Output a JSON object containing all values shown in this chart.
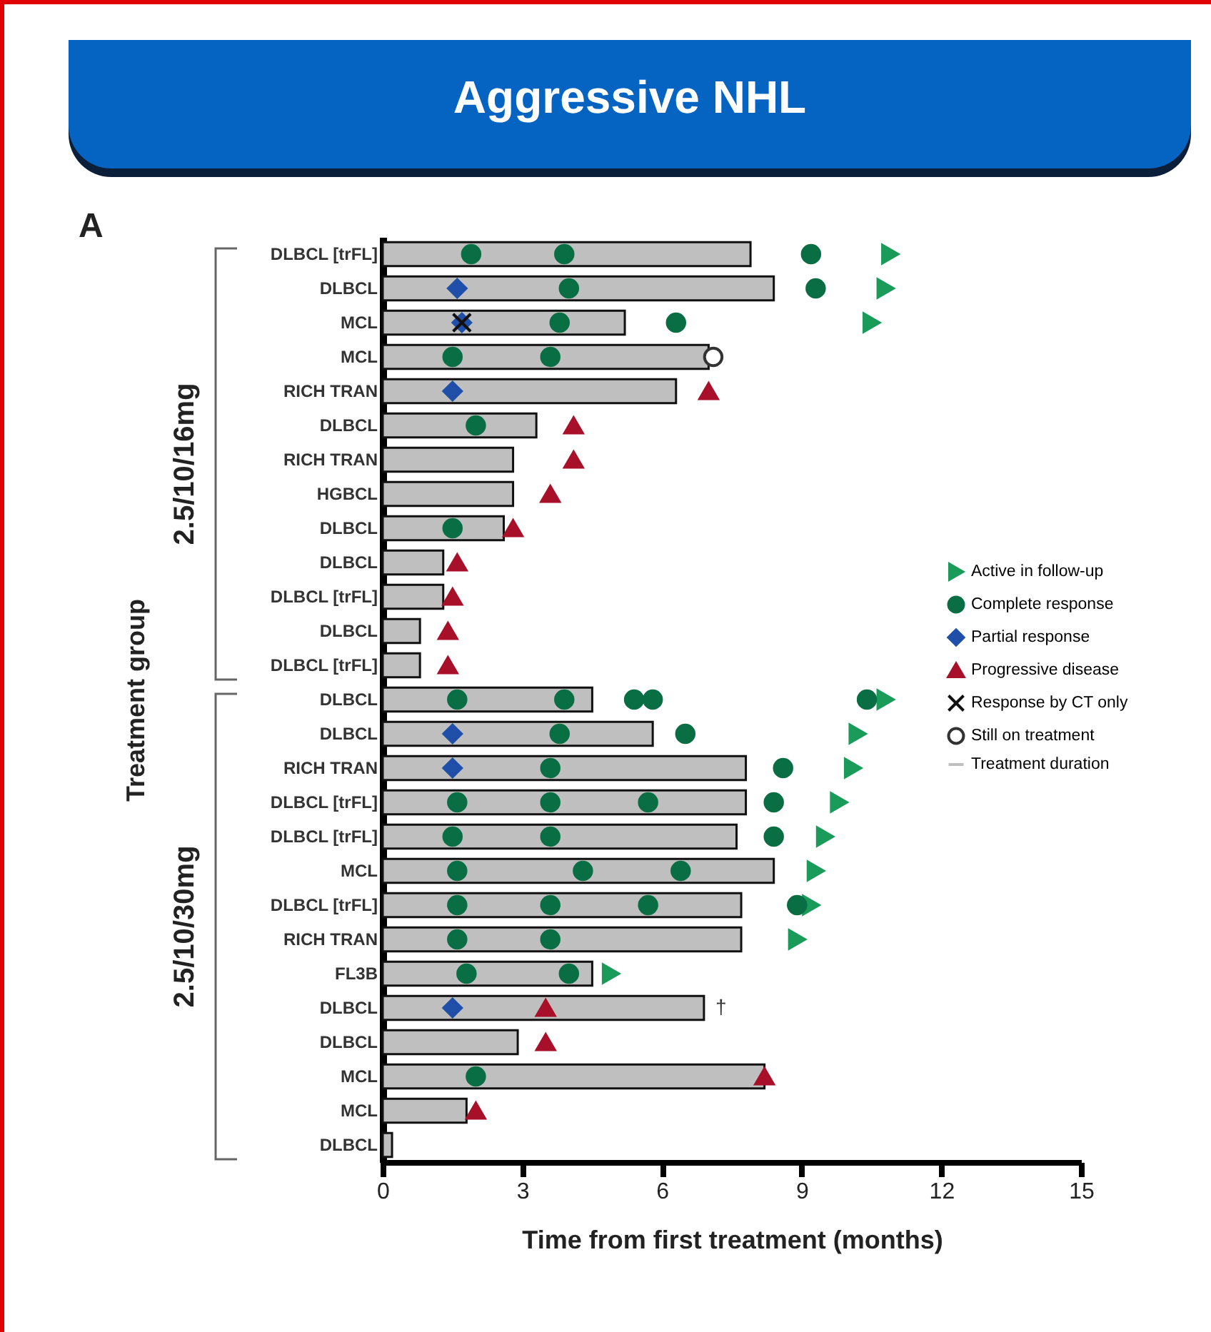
{
  "chart_data": {
    "type": "bar",
    "orientation": "horizontal",
    "title": "Aggressive NHL",
    "xlabel": "Time from first treatment (months)",
    "ylabel": "Treatment group",
    "annotations": [
      "A",
      "2.5/10/16mg",
      "2.5/10/30mg"
    ],
    "categories": [
      "DLBCL [trFL]",
      "DLBCL",
      "MCL",
      "MCL",
      "RICH TRAN",
      "DLBCL",
      "RICH TRAN",
      "HGBCL",
      "DLBCL",
      "DLBCL",
      "DLBCL [trFL]",
      "DLBCL",
      "DLBCL [trFL]",
      "DLBCL",
      "DLBCL",
      "RICH TRAN",
      "DLBCL [trFL]",
      "DLBCL [trFL]",
      "MCL",
      "DLBCL [trFL]",
      "RICH TRAN",
      "FL3B",
      "DLBCL",
      "DLBCL",
      "MCL",
      "MCL",
      "DLBCL"
    ],
    "xlim": [
      0,
      15
    ],
    "xticks": [
      0,
      3,
      6,
      9,
      12,
      15
    ],
    "legend": "right",
    "series": [
      {
        "name": "Active in follow-up",
        "type": "scatter",
        "marker": "triangle-right",
        "color": "#1a9b5a",
        "values": [
          10.9,
          10.8,
          10.5,
          null,
          null,
          null,
          null,
          null,
          null,
          null,
          null,
          null,
          null,
          10.8,
          10.2,
          10.1,
          9.8,
          9.5,
          9.3,
          9.2,
          8.9,
          4.9,
          null,
          null,
          null,
          null,
          null
        ]
      },
      {
        "name": "Complete response",
        "type": "scatter",
        "marker": "circle",
        "color": "#0a6e45",
        "values": [
          1.9,
          4.0,
          3.8,
          1.5,
          null,
          2.0,
          null,
          null,
          1.5,
          null,
          null,
          null,
          null,
          1.6,
          3.8,
          3.6,
          1.6,
          1.5,
          1.6,
          1.6,
          1.6,
          1.8,
          null,
          null,
          2.0,
          null,
          null
        ]
      },
      {
        "type": "scatter",
        "marker": "circle",
        "color": "#0a6e45",
        "values": [
          3.9,
          9.3,
          6.3,
          3.6,
          null,
          null,
          null,
          null,
          null,
          null,
          null,
          null,
          null,
          3.9,
          6.5,
          8.6,
          3.6,
          3.6,
          4.3,
          3.6,
          3.6,
          4.0,
          null,
          null,
          null,
          null,
          null
        ]
      },
      {
        "type": "scatter",
        "marker": "circle",
        "color": "#0a6e45",
        "values": [
          9.2,
          null,
          null,
          null,
          null,
          null,
          null,
          null,
          null,
          null,
          null,
          null,
          null,
          5.4,
          null,
          null,
          5.7,
          8.4,
          6.4,
          5.7,
          null,
          null,
          null,
          null,
          null,
          null,
          null
        ]
      },
      {
        "type": "scatter",
        "marker": "circle",
        "color": "#0a6e45",
        "values": [
          null,
          null,
          null,
          null,
          null,
          null,
          null,
          null,
          null,
          null,
          null,
          null,
          null,
          5.8,
          null,
          null,
          8.4,
          null,
          null,
          8.9,
          null,
          null,
          null,
          null,
          null,
          null,
          null
        ]
      },
      {
        "type": "scatter",
        "marker": "circle",
        "color": "#0a6e45",
        "values": [
          null,
          null,
          null,
          null,
          null,
          null,
          null,
          null,
          null,
          null,
          null,
          null,
          null,
          10.4,
          null,
          null,
          null,
          null,
          null,
          null,
          null,
          null,
          null,
          null,
          null,
          null,
          null
        ]
      },
      {
        "name": "Partial response",
        "type": "scatter",
        "marker": "diamond",
        "color": "#1f4fa8",
        "values": [
          null,
          1.6,
          1.7,
          null,
          1.5,
          null,
          null,
          null,
          null,
          null,
          null,
          null,
          null,
          null,
          1.5,
          1.5,
          null,
          null,
          null,
          null,
          null,
          null,
          1.5,
          null,
          null,
          null,
          null
        ]
      },
      {
        "name": "Progressive disease",
        "type": "scatter",
        "marker": "triangle",
        "color": "#a8102a",
        "values": [
          null,
          null,
          null,
          null,
          7.0,
          4.1,
          4.1,
          3.6,
          2.8,
          1.6,
          1.5,
          1.4,
          1.4,
          null,
          null,
          null,
          null,
          null,
          null,
          null,
          null,
          null,
          3.5,
          3.5,
          8.2,
          2.0,
          null
        ]
      },
      {
        "name": "Response by CT only",
        "type": "scatter",
        "marker": "cross",
        "color": "#111111",
        "values": [
          null,
          null,
          1.7,
          null,
          null,
          null,
          null,
          null,
          null,
          null,
          null,
          null,
          null,
          null,
          null,
          null,
          null,
          null,
          null,
          null,
          null,
          null,
          null,
          null,
          null,
          null,
          null
        ]
      },
      {
        "name": "Still on treatment",
        "type": "scatter",
        "marker": "circle",
        "color": "#ffffff",
        "values": [
          null,
          null,
          null,
          7.1,
          null,
          null,
          null,
          null,
          null,
          null,
          null,
          null,
          null,
          null,
          null,
          null,
          null,
          null,
          null,
          null,
          null,
          null,
          null,
          null,
          null,
          null,
          null
        ]
      },
      {
        "name": "Treatment duration",
        "color": "#bfbfbf",
        "values": [
          7.9,
          8.4,
          5.2,
          7.0,
          6.3,
          3.3,
          2.8,
          2.8,
          2.6,
          1.3,
          1.3,
          0.8,
          0.8,
          4.5,
          5.8,
          7.8,
          7.8,
          7.6,
          8.4,
          7.7,
          7.7,
          4.5,
          6.9,
          2.9,
          8.2,
          1.8,
          0.2
        ],
        "value_labels": [
          null,
          null,
          null,
          null,
          null,
          null,
          null,
          null,
          null,
          null,
          null,
          null,
          null,
          null,
          null,
          null,
          null,
          null,
          null,
          null,
          null,
          null,
          "†",
          null,
          null,
          null,
          null
        ]
      }
    ]
  }
}
